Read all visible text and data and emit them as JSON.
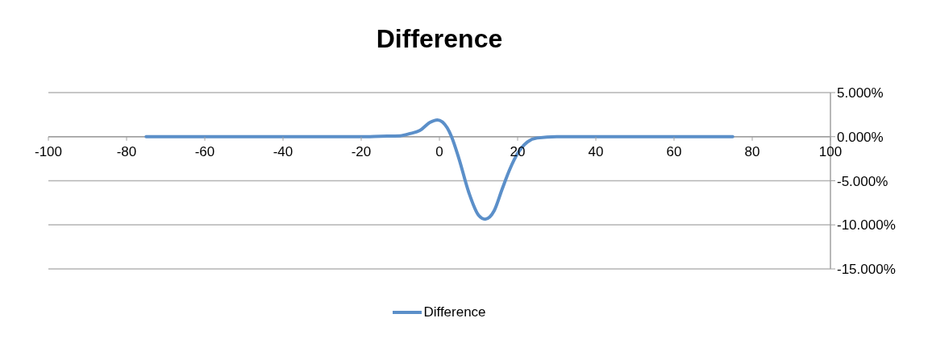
{
  "chart_data": {
    "type": "line",
    "title": "Difference",
    "legend": "bottom",
    "grid": "y",
    "marker": "none",
    "line_style": "solid",
    "xlim": [
      -100,
      100
    ],
    "xticks": [
      -100,
      -80,
      -60,
      -40,
      -20,
      0,
      20,
      40,
      60,
      80,
      100
    ],
    "ylim": [
      -15,
      5
    ],
    "yticks": [
      {
        "value": 5,
        "label": "5.000%"
      },
      {
        "value": 0,
        "label": "0.000%"
      },
      {
        "value": -5,
        "label": "-5.000%"
      },
      {
        "value": -10,
        "label": "-10.000%"
      },
      {
        "value": -15,
        "label": "-15.000%"
      }
    ],
    "series": [
      {
        "name": "Difference",
        "color": "#5b8fc9",
        "x": [
          -75,
          -40,
          -20,
          -15,
          -10,
          -7.5,
          -5,
          -2.5,
          -0.5,
          2,
          3.1,
          5,
          7.5,
          10,
          11.7,
          14,
          16,
          18,
          20,
          22.5,
          25,
          30,
          40,
          75
        ],
        "values": [
          0,
          0,
          0,
          0.05,
          0.1,
          0.35,
          0.7,
          1.6,
          1.9,
          1.0,
          0,
          -2.5,
          -6.3,
          -8.9,
          -9.35,
          -8.4,
          -6.0,
          -3.7,
          -1.9,
          -0.6,
          -0.15,
          0,
          0,
          0
        ]
      }
    ]
  }
}
